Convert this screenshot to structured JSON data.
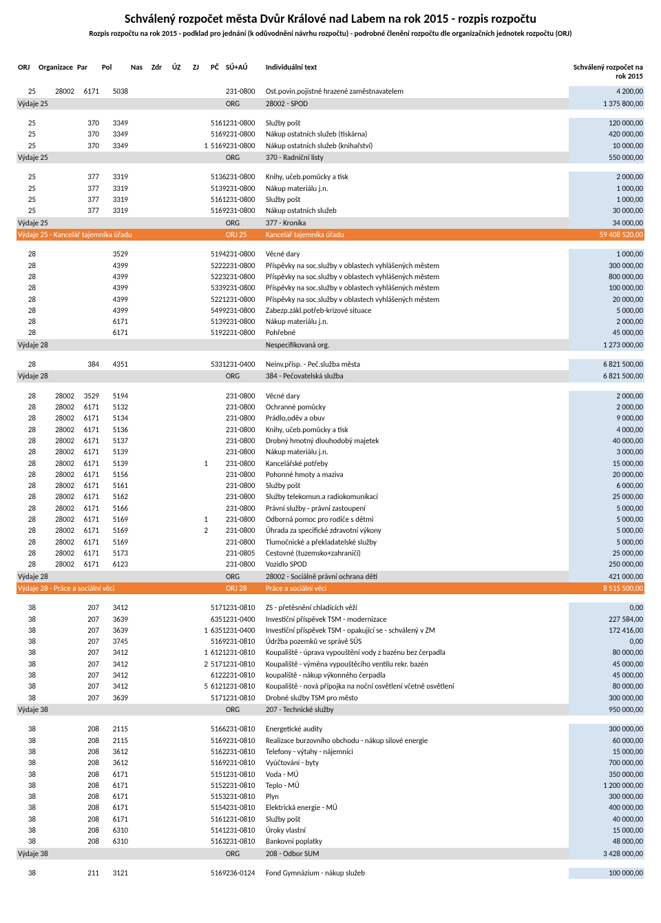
{
  "title": "Schválený rozpočet města Dvůr Králové nad Labem na rok 2015 - rozpis rozpočtu",
  "subtitle": "Rozpis rozpočtu na rok 2015 - podklad pro jednání (k odůvodnění návrhu rozpočtu) - podrobné členění rozpočtu dle organizačních jednotek rozpočtu (ORJ)",
  "columns": {
    "orj": "ORJ",
    "org": "Organizace",
    "par": "Par",
    "pol": "Pol",
    "nas": "Nas",
    "zdr": "Zdr",
    "uz": "ÚZ",
    "zj": "ZJ",
    "pc": "PČ",
    "su": "SÚ+AÚ",
    "txt": "Individuální text",
    "amt": "Schválený rozpočet na rok 2015"
  },
  "colors": {
    "data_amt_bg": "#d6e3f1",
    "subtotal_bg": "#dcdcdc",
    "orj_bg": "#ed7d31",
    "orj_fg": "#ffffff"
  },
  "rows": [
    {
      "t": "data",
      "orj": "25",
      "org": "28002",
      "par": "6171",
      "pol": "5038",
      "pc": "",
      "su": "231-0800",
      "txt": "Ost.povin.pojistné hrazené zaměstnavatelem",
      "amt": "4 200,00"
    },
    {
      "t": "subtotal",
      "label": "Výdaje 25",
      "su": "ORG",
      "txt": "28002 - SPOD",
      "amt": "1 375 800,00"
    },
    {
      "t": "spacer"
    },
    {
      "t": "data",
      "orj": "25",
      "org": "",
      "par": "370",
      "pol": "3349",
      "pc": "5161",
      "su": "231-0800",
      "txt": "Služby pošt",
      "amt": "120 000,00"
    },
    {
      "t": "data",
      "orj": "25",
      "org": "",
      "par": "370",
      "pol": "3349",
      "pc": "5169",
      "su": "231-0800",
      "txt": "Nákup ostatních služeb (tiskárna)",
      "amt": "420 000,00"
    },
    {
      "t": "data",
      "orj": "25",
      "org": "",
      "par": "370",
      "pol": "3349",
      "pc": "5169",
      "zj": "1",
      "su": "231-0800",
      "txt": "Nákup ostatních služeb (knihařství)",
      "amt": "10 000,00"
    },
    {
      "t": "subtotal",
      "label": "Výdaje 25",
      "su": "ORG",
      "txt": "370 - Radniční listy",
      "amt": "550 000,00"
    },
    {
      "t": "spacer"
    },
    {
      "t": "data",
      "orj": "25",
      "org": "",
      "par": "377",
      "pol": "3319",
      "pc": "5136",
      "su": "231-0800",
      "txt": "Knihy, učeb.pomůcky a tisk",
      "amt": "2 000,00"
    },
    {
      "t": "data",
      "orj": "25",
      "org": "",
      "par": "377",
      "pol": "3319",
      "pc": "5139",
      "su": "231-0800",
      "txt": "Nákup materiálu j.n.",
      "amt": "1 000,00"
    },
    {
      "t": "data",
      "orj": "25",
      "org": "",
      "par": "377",
      "pol": "3319",
      "pc": "5161",
      "su": "231-0800",
      "txt": "Služby pošt",
      "amt": "1 000,00"
    },
    {
      "t": "data",
      "orj": "25",
      "org": "",
      "par": "377",
      "pol": "3319",
      "pc": "5169",
      "su": "231-0800",
      "txt": "Nákup ostatních služeb",
      "amt": "30 000,00"
    },
    {
      "t": "subtotal",
      "label": "Výdaje 25",
      "su": "ORG",
      "txt": "377 - Kronika",
      "amt": "34 000,00"
    },
    {
      "t": "orj",
      "label": "Výdaje 25 - Kancelář tajemníka úřadu",
      "su": "ORJ 25",
      "txt": "Kancelář tajemníka úřadu",
      "amt": "59 408 520,00"
    },
    {
      "t": "spacer"
    },
    {
      "t": "data",
      "orj": "28",
      "org": "",
      "par": "",
      "pol": "3529",
      "pc": "5194",
      "su": "231-0800",
      "txt": "Věcné dary",
      "amt": "1 000,00"
    },
    {
      "t": "data",
      "orj": "28",
      "org": "",
      "par": "",
      "pol": "4399",
      "pc": "5222",
      "su": "231-0800",
      "txt": "Příspěvky na soc.služby v oblastech vyhlášených městem",
      "amt": "300 000,00"
    },
    {
      "t": "data",
      "orj": "28",
      "org": "",
      "par": "",
      "pol": "4399",
      "pc": "5223",
      "su": "231-0800",
      "txt": "Příspěvky na soc.služby v oblastech vyhlášených městem",
      "amt": "800 000,00"
    },
    {
      "t": "data",
      "orj": "28",
      "org": "",
      "par": "",
      "pol": "4399",
      "pc": "5339",
      "su": "231-0800",
      "txt": "Příspěvky na soc.služby v oblastech vyhlášených městem",
      "amt": "100 000,00"
    },
    {
      "t": "data",
      "orj": "28",
      "org": "",
      "par": "",
      "pol": "4399",
      "pc": "5221",
      "su": "231-0800",
      "txt": "Příspěvky na soc.služby v oblastech vyhlášených městem",
      "amt": "20 000,00"
    },
    {
      "t": "data",
      "orj": "28",
      "org": "",
      "par": "",
      "pol": "4399",
      "pc": "5499",
      "su": "231-0800",
      "txt": "Zabezp.zákl.potřeb-krizové situace",
      "amt": "5 000,00"
    },
    {
      "t": "data",
      "orj": "28",
      "org": "",
      "par": "",
      "pol": "6171",
      "pc": "5139",
      "su": "231-0800",
      "txt": "Nákup materiálu j.n.",
      "amt": "2 000,00"
    },
    {
      "t": "data",
      "orj": "28",
      "org": "",
      "par": "",
      "pol": "6171",
      "pc": "5192",
      "su": "231-0800",
      "txt": "Pohřebné",
      "amt": "45 000,00"
    },
    {
      "t": "subtotal",
      "label": "Výdaje 28",
      "su": "",
      "txt": "Nespecifikovaná org.",
      "amt": "1 273 000,00"
    },
    {
      "t": "spacer"
    },
    {
      "t": "data",
      "orj": "28",
      "org": "",
      "par": "384",
      "pol": "4351",
      "pc": "5331",
      "su": "231-0400",
      "txt": "Neinv.přísp. - Peč.služba města",
      "amt": "6 821 500,00"
    },
    {
      "t": "subtotal",
      "label": "Výdaje 28",
      "su": "ORG",
      "txt": "384 - Pečovatelská služba",
      "amt": "6 821 500,00"
    },
    {
      "t": "spacer"
    },
    {
      "t": "data",
      "orj": "28",
      "org": "28002",
      "par": "3529",
      "pol": "5194",
      "pc": "",
      "su": "231-0800",
      "txt": "Věcné dary",
      "amt": "2 000,00"
    },
    {
      "t": "data",
      "orj": "28",
      "org": "28002",
      "par": "6171",
      "pol": "5132",
      "pc": "",
      "su": "231-0800",
      "txt": "Ochranné pomůcky",
      "amt": "2 000,00"
    },
    {
      "t": "data",
      "orj": "28",
      "org": "28002",
      "par": "6171",
      "pol": "5134",
      "pc": "",
      "su": "231-0800",
      "txt": "Prádlo,oděv a obuv",
      "amt": "9 000,00"
    },
    {
      "t": "data",
      "orj": "28",
      "org": "28002",
      "par": "6171",
      "pol": "5136",
      "pc": "",
      "su": "231-0800",
      "txt": "Knihy, učeb.pomůcky a tisk",
      "amt": "4 000,00"
    },
    {
      "t": "data",
      "orj": "28",
      "org": "28002",
      "par": "6171",
      "pol": "5137",
      "pc": "",
      "su": "231-0800",
      "txt": "Drobný hmotný dlouhodobý majetek",
      "amt": "40 000,00"
    },
    {
      "t": "data",
      "orj": "28",
      "org": "28002",
      "par": "6171",
      "pol": "5139",
      "pc": "",
      "su": "231-0800",
      "txt": "Nákup materiálu j.n.",
      "amt": "3 000,00"
    },
    {
      "t": "data",
      "orj": "28",
      "org": "28002",
      "par": "6171",
      "pol": "5139",
      "pc": "",
      "zj": "1",
      "su": "231-0800",
      "txt": "Kancelářské potřeby",
      "amt": "15 000,00"
    },
    {
      "t": "data",
      "orj": "28",
      "org": "28002",
      "par": "6171",
      "pol": "5156",
      "pc": "",
      "su": "231-0800",
      "txt": "Pohonné hmoty a maziva",
      "amt": "20 000,00"
    },
    {
      "t": "data",
      "orj": "28",
      "org": "28002",
      "par": "6171",
      "pol": "5161",
      "pc": "",
      "su": "231-0800",
      "txt": "Služby pošt",
      "amt": "6 000,00"
    },
    {
      "t": "data",
      "orj": "28",
      "org": "28002",
      "par": "6171",
      "pol": "5162",
      "pc": "",
      "su": "231-0800",
      "txt": "Služby telekomun.a radiokomunikací",
      "amt": "25 000,00"
    },
    {
      "t": "data",
      "orj": "28",
      "org": "28002",
      "par": "6171",
      "pol": "5166",
      "pc": "",
      "su": "231-0800",
      "txt": "Právní služby - právní zastoupení",
      "amt": "5 000,00"
    },
    {
      "t": "data",
      "orj": "28",
      "org": "28002",
      "par": "6171",
      "pol": "5169",
      "pc": "",
      "zj": "1",
      "su": "231-0800",
      "txt": "Odborná pomoc pro rodiče s dětmi",
      "amt": "5 000,00"
    },
    {
      "t": "data",
      "orj": "28",
      "org": "28002",
      "par": "6171",
      "pol": "5169",
      "pc": "",
      "zj": "2",
      "su": "231-0800",
      "txt": "Úhrada za specifické zdravotní výkony",
      "amt": "5 000,00"
    },
    {
      "t": "data",
      "orj": "28",
      "org": "28002",
      "par": "6171",
      "pol": "5169",
      "pc": "",
      "su": "231-0800",
      "txt": "Tlumočnické a překladatelské služby",
      "amt": "5 000,00"
    },
    {
      "t": "data",
      "orj": "28",
      "org": "28002",
      "par": "6171",
      "pol": "5173",
      "pc": "",
      "su": "231-0805",
      "txt": "Cestovné (tuzemsko+zahraničí)",
      "amt": "25 000,00"
    },
    {
      "t": "data",
      "orj": "28",
      "org": "28002",
      "par": "6171",
      "pol": "6123",
      "pc": "",
      "su": "231-0800",
      "txt": "Vozidlo SPOD",
      "amt": "250 000,00"
    },
    {
      "t": "subtotal",
      "label": "Výdaje 28",
      "su": "ORG",
      "txt": "28002 - Sociálně právní ochrana dětí",
      "amt": "421 000,00"
    },
    {
      "t": "orj",
      "label": "Výdaje 28 - Práce a sociální věci",
      "su": "ORJ 28",
      "txt": "Práce a sociální věci",
      "amt": "8 515 500,00"
    },
    {
      "t": "spacer"
    },
    {
      "t": "data",
      "orj": "38",
      "org": "",
      "par": "207",
      "pol": "3412",
      "pc": "5171",
      "su": "231-0810",
      "txt": "ZS - přetěsnění chladících věží",
      "amt": "0,00"
    },
    {
      "t": "data",
      "orj": "38",
      "org": "",
      "par": "207",
      "pol": "3639",
      "pc": "6351",
      "su": "231-0400",
      "txt": "Investiční příspěvek TSM - modernizace",
      "amt": "227 584,00"
    },
    {
      "t": "data",
      "orj": "38",
      "org": "",
      "par": "207",
      "pol": "3639",
      "pc": "6351",
      "zj": "1",
      "su": "231-0400",
      "txt": "Investiční příspěvek TSM - opakující se - schválený v ZM",
      "amt": "172 416,00"
    },
    {
      "t": "data",
      "orj": "38",
      "org": "",
      "par": "207",
      "pol": "3745",
      "pc": "5169",
      "su": "231-0810",
      "txt": "Údržba pozemků ve správě SÚS",
      "amt": "0,00"
    },
    {
      "t": "data",
      "orj": "38",
      "org": "",
      "par": "207",
      "pol": "3412",
      "pc": "6121",
      "zj": "1",
      "su": "231-0810",
      "txt": "Koupaliště - úprava vypouštění vody z bazénu bez čerpadla",
      "amt": "80 000,00"
    },
    {
      "t": "data",
      "orj": "38",
      "org": "",
      "par": "207",
      "pol": "3412",
      "pc": "5171",
      "zj": "2",
      "su": "231-0810",
      "txt": "Koupaliště - výměna vypouštěcího ventilu rekr. bazén",
      "amt": "45 000,00"
    },
    {
      "t": "data",
      "orj": "38",
      "org": "",
      "par": "207",
      "pol": "3412",
      "pc": "6122",
      "su": "231-0810",
      "txt": "koupaliště - nákup výkonného čerpadla",
      "amt": "45 000,00"
    },
    {
      "t": "data",
      "orj": "38",
      "org": "",
      "par": "207",
      "pol": "3412",
      "pc": "6121",
      "zj": "5",
      "su": "231-0810",
      "txt": "Koupaliště - nová přípojka na noční osvětlení včetně osvětlení",
      "amt": "80 000,00"
    },
    {
      "t": "data",
      "orj": "38",
      "org": "",
      "par": "207",
      "pol": "3639",
      "pc": "5171",
      "su": "231-0810",
      "txt": "Drobné služby TSM pro město",
      "amt": "300 000,00"
    },
    {
      "t": "subtotal",
      "label": "Výdaje 38",
      "su": "ORG",
      "txt": "207 - Technické služby",
      "amt": "950 000,00"
    },
    {
      "t": "spacer"
    },
    {
      "t": "data",
      "orj": "38",
      "org": "",
      "par": "208",
      "pol": "2115",
      "pc": "5166",
      "su": "231-0810",
      "txt": "Energetické audity",
      "amt": "300 000,00"
    },
    {
      "t": "data",
      "orj": "38",
      "org": "",
      "par": "208",
      "pol": "2115",
      "pc": "5169",
      "su": "231-0810",
      "txt": "Realizace burzovního obchodu - nákup silové energie",
      "amt": "60 000,00"
    },
    {
      "t": "data",
      "orj": "38",
      "org": "",
      "par": "208",
      "pol": "3612",
      "pc": "5162",
      "su": "231-0810",
      "txt": "Telefony - výtahy - nájemníci",
      "amt": "15 000,00"
    },
    {
      "t": "data",
      "orj": "38",
      "org": "",
      "par": "208",
      "pol": "3612",
      "pc": "5169",
      "su": "231-0810",
      "txt": "Vyúčtování - byty",
      "amt": "700 000,00"
    },
    {
      "t": "data",
      "orj": "38",
      "org": "",
      "par": "208",
      "pol": "6171",
      "pc": "5151",
      "su": "231-0810",
      "txt": "Voda  - MÚ",
      "amt": "350 000,00"
    },
    {
      "t": "data",
      "orj": "38",
      "org": "",
      "par": "208",
      "pol": "6171",
      "pc": "5152",
      "su": "231-0810",
      "txt": "Teplo - MÚ",
      "amt": "1 200 000,00"
    },
    {
      "t": "data",
      "orj": "38",
      "org": "",
      "par": "208",
      "pol": "6171",
      "pc": "5153",
      "su": "231-0810",
      "txt": "Plyn",
      "amt": "300 000,00"
    },
    {
      "t": "data",
      "orj": "38",
      "org": "",
      "par": "208",
      "pol": "6171",
      "pc": "5154",
      "su": "231-0810",
      "txt": "Elektrická energie - MÚ",
      "amt": "400 000,00"
    },
    {
      "t": "data",
      "orj": "38",
      "org": "",
      "par": "208",
      "pol": "6171",
      "pc": "5161",
      "su": "231-0810",
      "txt": "Služby pošt",
      "amt": "40 000,00"
    },
    {
      "t": "data",
      "orj": "38",
      "org": "",
      "par": "208",
      "pol": "6310",
      "pc": "5141",
      "su": "231-0810",
      "txt": "Úroky vlastní",
      "amt": "15 000,00"
    },
    {
      "t": "data",
      "orj": "38",
      "org": "",
      "par": "208",
      "pol": "6310",
      "pc": "5163",
      "su": "231-0810",
      "txt": "Bankovní poplatky",
      "amt": "48 000,00"
    },
    {
      "t": "subtotal",
      "label": "Výdaje 38",
      "su": "ORG",
      "txt": "208 - Odbor SUM",
      "amt": "3 428 000,00"
    },
    {
      "t": "spacer"
    },
    {
      "t": "data",
      "orj": "38",
      "org": "",
      "par": "211",
      "pol": "3121",
      "pc": "5169",
      "su": "236-0124",
      "txt": "Fond Gymnázium - nákup služeb",
      "amt": "100 000,00"
    }
  ]
}
